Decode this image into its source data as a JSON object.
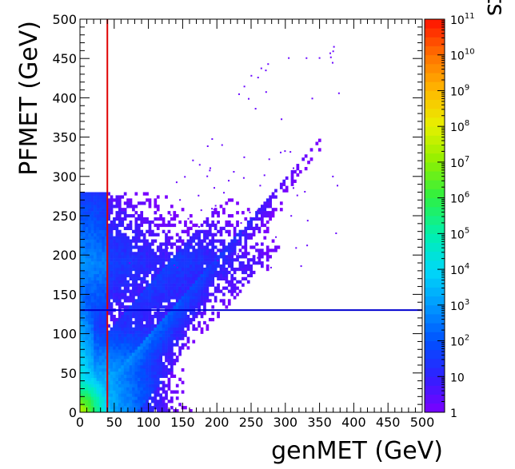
{
  "chart_data": {
    "type": "heatmap",
    "title": "",
    "xlabel": "genMET (GeV)",
    "ylabel": "PFMET (GeV)",
    "xlim": [
      0,
      500
    ],
    "ylim": [
      0,
      500
    ],
    "x_ticks": [
      0,
      50,
      100,
      150,
      200,
      250,
      300,
      350,
      400,
      450,
      500
    ],
    "y_ticks": [
      0,
      50,
      100,
      150,
      200,
      250,
      300,
      350,
      400,
      450,
      500
    ],
    "z_label": "Events",
    "z_scale": "log",
    "z_range": [
      1,
      100000000000
    ],
    "z_ticks": [
      {
        "base": "1",
        "exp": ""
      },
      {
        "base": "10",
        "exp": ""
      },
      {
        "base": "10",
        "exp": "2"
      },
      {
        "base": "10",
        "exp": "3"
      },
      {
        "base": "10",
        "exp": "4"
      },
      {
        "base": "10",
        "exp": "5"
      },
      {
        "base": "10",
        "exp": "6"
      },
      {
        "base": "10",
        "exp": "7"
      },
      {
        "base": "10",
        "exp": "8"
      },
      {
        "base": "10",
        "exp": "9"
      },
      {
        "base": "10",
        "exp": "10"
      },
      {
        "base": "10",
        "exp": "11"
      }
    ],
    "lines": [
      {
        "orientation": "vertical",
        "value": 40,
        "color": "#e00000"
      },
      {
        "orientation": "horizontal",
        "value": 130,
        "color": "#0000d0"
      }
    ],
    "density_regions": [
      {
        "x": [
          0,
          15
        ],
        "y": [
          0,
          40
        ],
        "log_events": 7.5
      },
      {
        "x": [
          0,
          20
        ],
        "y": [
          40,
          80
        ],
        "log_events": 6.3
      },
      {
        "x": [
          15,
          40
        ],
        "y": [
          0,
          50
        ],
        "log_events": 5.6
      },
      {
        "x": [
          40,
          90
        ],
        "y": [
          0,
          40
        ],
        "log_events": 4.4
      },
      {
        "x": [
          20,
          80
        ],
        "y": [
          50,
          110
        ],
        "log_events": 4.1
      },
      {
        "x": [
          80,
          150
        ],
        "y": [
          30,
          120
        ],
        "log_events": 3.3
      },
      {
        "x": [
          0,
          150
        ],
        "y": [
          120,
          170
        ],
        "log_events": 2.6
      },
      {
        "x": [
          150,
          250
        ],
        "y": [
          100,
          240
        ],
        "log_events": 1.6
      },
      {
        "x": [
          250,
          350
        ],
        "y": [
          200,
          320
        ],
        "log_events": 0.6
      }
    ]
  }
}
